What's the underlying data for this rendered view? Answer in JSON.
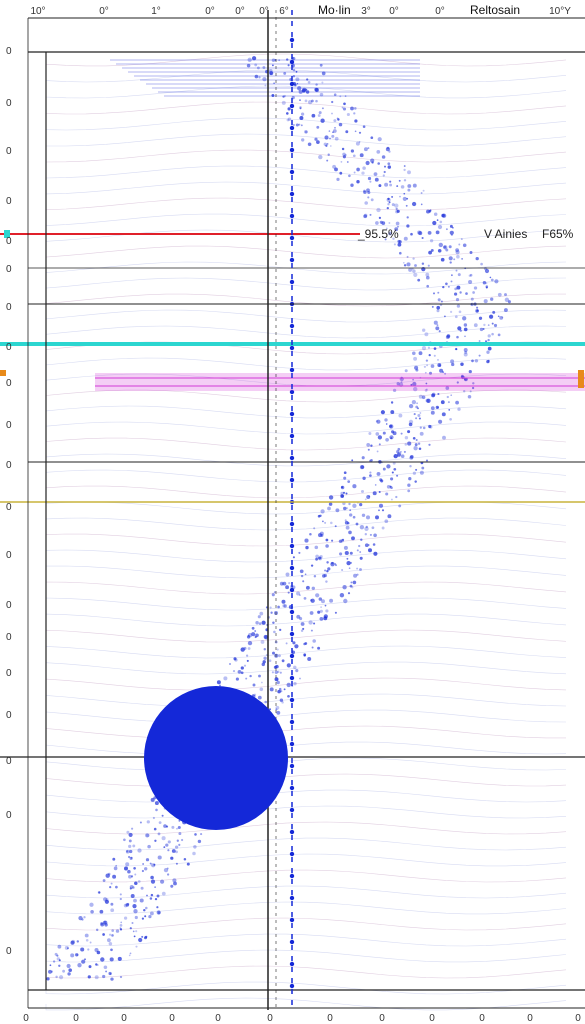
{
  "chart_data": {
    "type": "scatter",
    "title": "Mo·lin",
    "header_right": "Reltosain",
    "top_ticks": [
      "10°",
      "0°",
      "1°",
      "0°",
      "0°",
      "0°",
      "6°",
      "3°",
      "0°",
      "0°",
      "10°Y"
    ],
    "bottom_ticks": [
      "0",
      "0",
      "0",
      "0",
      "0",
      "0",
      "0",
      "0",
      "0",
      "0",
      "0",
      "0"
    ],
    "left_ticks": [
      "0",
      "0",
      "0",
      "0",
      "0",
      "0",
      "0",
      "0",
      "0",
      "0",
      "0",
      "0",
      "0",
      "0",
      "0",
      "0",
      "0",
      "0",
      "0",
      "0"
    ],
    "annotations": [
      "_95.5%",
      "V Ainies",
      "F65%"
    ],
    "colors": {
      "main": "#1428d8",
      "red": "#e0202a",
      "cyan": "#2cd6d0",
      "magenta": "#d23ad6",
      "orange": "#e88a1a",
      "grid": "#222222"
    },
    "grid": true
  }
}
